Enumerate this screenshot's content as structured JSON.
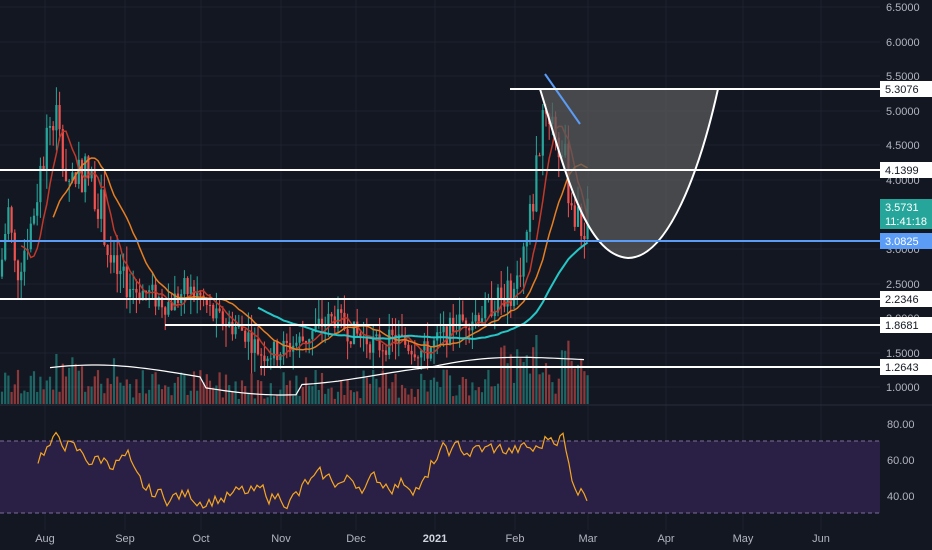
{
  "price_axis": {
    "ticks": [
      "6.5000",
      "6.0000",
      "5.5000",
      "5.0000",
      "4.5000",
      "4.0000",
      "3.0000",
      "2.5000",
      "2.0000",
      "1.5000",
      "1.0000"
    ]
  },
  "rsi_axis": {
    "ticks": [
      "80.00",
      "60.00",
      "40.00"
    ]
  },
  "time_axis": {
    "labels": [
      "Aug",
      "Sep",
      "Oct",
      "Nov",
      "Dec",
      "2021",
      "Feb",
      "Mar",
      "Apr",
      "May",
      "Jun"
    ]
  },
  "levels": [
    {
      "label": "5.3076",
      "color": "#ffffff"
    },
    {
      "label": "4.1399",
      "color": "#ffffff"
    },
    {
      "label": "3.0825",
      "color": "#5b9cf6"
    },
    {
      "label": "2.2346",
      "color": "#ffffff"
    },
    {
      "label": "1.8681",
      "color": "#ffffff"
    },
    {
      "label": "1.2643",
      "color": "#ffffff"
    }
  ],
  "last_price": {
    "value": "3.5731",
    "countdown": "11:41:18",
    "color": "#26a69a"
  },
  "colors": {
    "background": "#131722",
    "up": "#26a69a",
    "down": "#ef5350",
    "ma_fast": "#c0392b",
    "ma_mid": "#e67e22",
    "ma_slow": "#26c6c6",
    "ma_blue": "#5b9cf6",
    "rsi_line": "#f5a623",
    "rsi_band": "#2a1f44",
    "cup_fill": "#4a4a4a"
  },
  "chart_data": {
    "type": "candlestick",
    "price_ticks": [
      6.5,
      6.0,
      5.5,
      5.0,
      4.5,
      4.0,
      3.0,
      2.5,
      2.0,
      1.5,
      1.0
    ],
    "horizontal_levels": [
      5.3076,
      4.1399,
      3.0825,
      2.2346,
      1.8681,
      1.2643
    ],
    "last_price": 3.5731,
    "rsi_ticks": [
      80,
      60,
      40
    ],
    "rsi_bands": [
      70,
      30
    ],
    "x_labels": [
      "Aug",
      "Sep",
      "Oct",
      "Nov",
      "Dec",
      "2021",
      "Feb",
      "Mar",
      "Apr",
      "May",
      "Jun"
    ]
  }
}
